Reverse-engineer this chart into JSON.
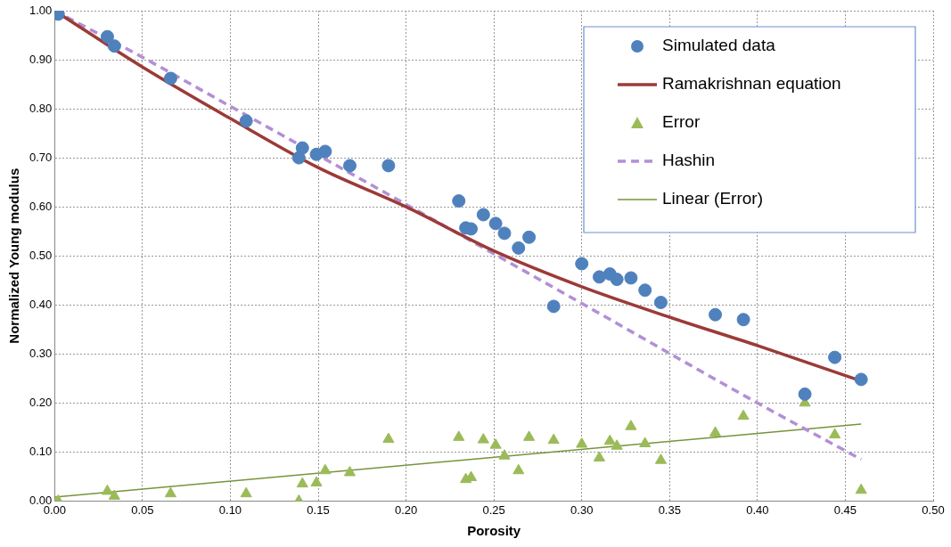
{
  "chart_data": {
    "type": "scatter",
    "xlabel": "Porosity",
    "ylabel": "Normalized Young modulus",
    "xlim": [
      0,
      0.5
    ],
    "ylim": [
      0,
      1
    ],
    "xticks": [
      {
        "value": 0,
        "label": "0.00"
      },
      {
        "value": 0.05,
        "label": "0.05"
      },
      {
        "value": 0.1,
        "label": "0.10"
      },
      {
        "value": 0.15,
        "label": "0.15"
      },
      {
        "value": 0.2,
        "label": "0.20"
      },
      {
        "value": 0.25,
        "label": "0.25"
      },
      {
        "value": 0.3,
        "label": "0.30"
      },
      {
        "value": 0.35,
        "label": "0.35"
      },
      {
        "value": 0.4,
        "label": "0.40"
      },
      {
        "value": 0.45,
        "label": "0.45"
      },
      {
        "value": 0.5,
        "label": "0.50"
      }
    ],
    "yticks": [
      {
        "value": 0,
        "label": "0.00"
      },
      {
        "value": 0.1,
        "label": "0.10"
      },
      {
        "value": 0.2,
        "label": "0.20"
      },
      {
        "value": 0.3,
        "label": "0.30"
      },
      {
        "value": 0.4,
        "label": "0.40"
      },
      {
        "value": 0.5,
        "label": "0.50"
      },
      {
        "value": 0.6,
        "label": "0.60"
      },
      {
        "value": 0.7,
        "label": "0.70"
      },
      {
        "value": 0.8,
        "label": "0.80"
      },
      {
        "value": 0.9,
        "label": "0.90"
      },
      {
        "value": 1,
        "label": "1.00"
      }
    ],
    "grid": true,
    "legend": "top right",
    "series": [
      {
        "name": "Simulated data",
        "marker": "circle",
        "color": "#4f81bd",
        "x": [
          0.002,
          0.03,
          0.034,
          0.066,
          0.109,
          0.139,
          0.141,
          0.149,
          0.154,
          0.168,
          0.19,
          0.23,
          0.234,
          0.237,
          0.244,
          0.251,
          0.256,
          0.264,
          0.27,
          0.284,
          0.3,
          0.31,
          0.316,
          0.32,
          0.328,
          0.336,
          0.345,
          0.376,
          0.392,
          0.427,
          0.444,
          0.459
        ],
        "values": [
          0.993,
          0.947,
          0.928,
          0.862,
          0.775,
          0.7,
          0.72,
          0.707,
          0.713,
          0.684,
          0.684,
          0.612,
          0.557,
          0.555,
          0.584,
          0.566,
          0.546,
          0.516,
          0.538,
          0.397,
          0.484,
          0.457,
          0.463,
          0.452,
          0.455,
          0.43,
          0.405,
          0.38,
          0.37,
          0.218,
          0.293,
          0.248
        ]
      },
      {
        "name": "Ramakrishnan equation",
        "type": "line",
        "marker": "none",
        "line_style": "solid",
        "color": "#9b3b38",
        "x": [
          0,
          0.05,
          0.1,
          0.15,
          0.2,
          0.25,
          0.3,
          0.35,
          0.4,
          0.459
        ],
        "values": [
          1.0,
          0.885,
          0.78,
          0.68,
          0.6,
          0.51,
          0.437,
          0.375,
          0.317,
          0.245
        ]
      },
      {
        "name": "Error",
        "marker": "triangle",
        "color": "#9bbb59",
        "x": [
          0.002,
          0.03,
          0.034,
          0.066,
          0.109,
          0.139,
          0.141,
          0.149,
          0.154,
          0.168,
          0.19,
          0.23,
          0.234,
          0.237,
          0.244,
          0.251,
          0.256,
          0.264,
          0.27,
          0.284,
          0.3,
          0.31,
          0.316,
          0.32,
          0.328,
          0.336,
          0.345,
          0.376,
          0.392,
          0.427,
          0.444,
          0.459
        ],
        "values": [
          0.0,
          0.02,
          0.01,
          0.015,
          0.015,
          0.0,
          0.035,
          0.037,
          0.062,
          0.058,
          0.126,
          0.13,
          0.044,
          0.048,
          0.125,
          0.114,
          0.092,
          0.062,
          0.13,
          0.124,
          0.116,
          0.088,
          0.122,
          0.112,
          0.152,
          0.117,
          0.083,
          0.139,
          0.173,
          0.2,
          0.135,
          0.022
        ]
      },
      {
        "name": "Hashin",
        "type": "line",
        "marker": "none",
        "line_style": "dashed",
        "color": "#b38fd6",
        "x": [
          0,
          0.05,
          0.1,
          0.2,
          0.3,
          0.4,
          0.459
        ],
        "values": [
          1.0,
          0.905,
          0.805,
          0.605,
          0.403,
          0.2,
          0.085
        ]
      },
      {
        "name": "Linear (Error)",
        "type": "line",
        "marker": "none",
        "line_style": "solid",
        "color": "#77933c",
        "x": [
          0,
          0.459
        ],
        "values": [
          0.008,
          0.157
        ]
      }
    ]
  }
}
